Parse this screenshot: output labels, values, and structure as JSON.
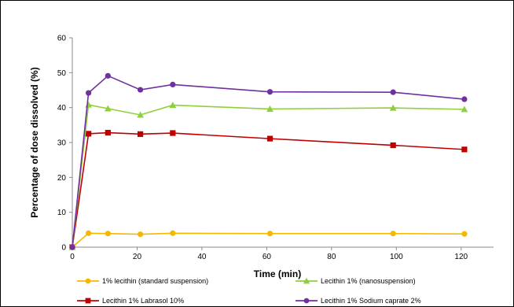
{
  "chart_data": {
    "type": "line",
    "title": "",
    "xlabel": "Time (min)",
    "ylabel": "Percentage of dose dissolved (%)",
    "xlim": [
      0,
      130
    ],
    "ylim": [
      0,
      60
    ],
    "xticks": [
      0,
      20,
      40,
      60,
      80,
      100,
      120
    ],
    "yticks": [
      0,
      10,
      20,
      30,
      40,
      50,
      60
    ],
    "grid": false,
    "legend_position": "bottom",
    "series": [
      {
        "name": "1% lecithin (standard suspension)",
        "color": "#F5B800",
        "marker": "circle",
        "x": [
          0,
          5,
          11,
          21,
          31,
          61,
          99,
          121
        ],
        "y": [
          0,
          4.0,
          3.9,
          3.7,
          4.0,
          3.9,
          3.9,
          3.8
        ]
      },
      {
        "name": "Lecithin 1% (nanosuspension)",
        "color": "#8FCF3C",
        "marker": "triangle",
        "x": [
          0,
          5,
          11,
          21,
          31,
          61,
          99,
          121
        ],
        "y": [
          0,
          40.8,
          39.7,
          37.9,
          40.7,
          39.6,
          39.9,
          39.5
        ]
      },
      {
        "name": "Lecithin 1% Labrasol 10%",
        "color": "#C00000",
        "marker": "square",
        "x": [
          0,
          5,
          11,
          21,
          31,
          61,
          99,
          121
        ],
        "y": [
          0,
          32.5,
          32.8,
          32.4,
          32.7,
          31.1,
          29.2,
          28.0
        ]
      },
      {
        "name": "Lecithin 1% Sodium caprate 2%",
        "color": "#7030A0",
        "marker": "circle",
        "x": [
          0,
          5,
          11,
          21,
          31,
          61,
          99,
          121
        ],
        "y": [
          0,
          44.2,
          49.1,
          45.1,
          46.6,
          44.5,
          44.4,
          42.4
        ]
      }
    ]
  }
}
